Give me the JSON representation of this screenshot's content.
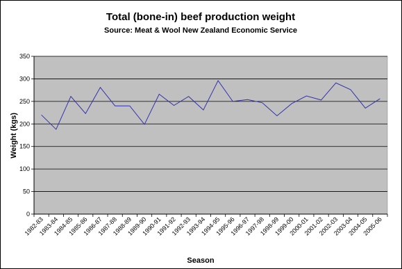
{
  "chart_data": {
    "type": "line",
    "title": "Total (bone-in) beef production weight",
    "subtitle": "Source: Meat & Wool New Zealand Economic Service",
    "xlabel": "Season",
    "ylabel": "Weight (kgs)",
    "ylim": [
      0,
      350
    ],
    "yticks": [
      0,
      50,
      100,
      150,
      200,
      250,
      300,
      350
    ],
    "grid": true,
    "legend": "none",
    "colors": {
      "plot_area": "#c0c0c0",
      "grid": "#000000",
      "series_line": "#3333aa",
      "axis": "#000000"
    },
    "categories": [
      "1982-83",
      "1983-84",
      "1984-85",
      "1985-86",
      "1986-87",
      "1987-88",
      "1988-89",
      "1989-90",
      "1990-91",
      "1991-92",
      "1992-93",
      "1993-94",
      "1994-95",
      "1995-96",
      "1996-97",
      "1997-98",
      "1998-99",
      "1999-00",
      "2000-01",
      "2001-02",
      "2002-03",
      "2003-04",
      "2004-05",
      "2005-06"
    ],
    "series": [
      {
        "values": [
          220,
          188,
          261,
          223,
          281,
          240,
          240,
          199,
          266,
          241,
          261,
          231,
          296,
          250,
          254,
          247,
          218,
          245,
          262,
          253,
          291,
          276,
          235,
          256
        ]
      }
    ]
  }
}
